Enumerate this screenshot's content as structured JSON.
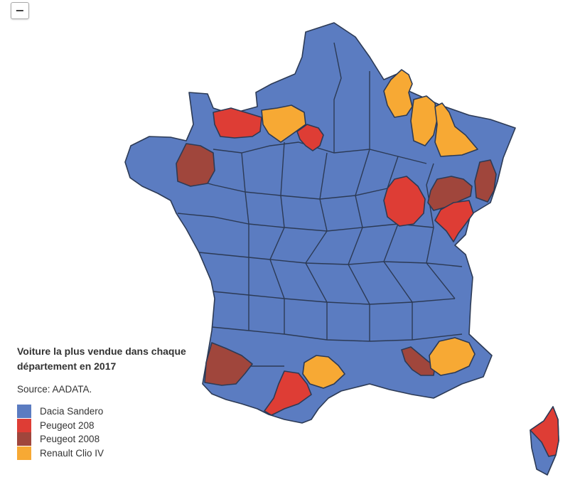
{
  "controls": {
    "zoom_out_label": "−"
  },
  "legend": {
    "title_line1": "Voiture la plus vendue dans chaque",
    "title_line2": "département en 2017",
    "source": "Source: AADATA.",
    "items": [
      {
        "label": "Dacia Sandero",
        "color": "#5b7cc1"
      },
      {
        "label": "Peugeot 208",
        "color": "#de3d35"
      },
      {
        "label": "Peugeot 2008",
        "color": "#a0463c"
      },
      {
        "label": "Renault Clio IV",
        "color": "#f7a934"
      }
    ]
  },
  "map": {
    "background_color": "#5b7cc1",
    "border_color": "#2c3a55",
    "regions": [
      {
        "name": "calvados-eure",
        "category": "Peugeot 208"
      },
      {
        "name": "oise",
        "category": "Renault Clio IV"
      },
      {
        "name": "ile-de-france",
        "category": "Peugeot 208"
      },
      {
        "name": "ardennes",
        "category": "Renault Clio IV"
      },
      {
        "name": "marne",
        "category": "Renault Clio IV"
      },
      {
        "name": "meuse-meurthe",
        "category": "Renault Clio IV"
      },
      {
        "name": "mayenne",
        "category": "Peugeot 2008"
      },
      {
        "name": "haut-rhin",
        "category": "Peugeot 2008"
      },
      {
        "name": "doubs",
        "category": "Peugeot 2008"
      },
      {
        "name": "cote-d-or",
        "category": "Peugeot 208"
      },
      {
        "name": "jura",
        "category": "Peugeot 208"
      },
      {
        "name": "landes",
        "category": "Peugeot 2008"
      },
      {
        "name": "bouches-du-rhone",
        "category": "Peugeot 2008"
      },
      {
        "name": "haute-garonne",
        "category": "Peugeot 208"
      },
      {
        "name": "tarn",
        "category": "Renault Clio IV"
      },
      {
        "name": "var",
        "category": "Renault Clio IV"
      },
      {
        "name": "haute-corse",
        "category": "Peugeot 208"
      }
    ]
  }
}
